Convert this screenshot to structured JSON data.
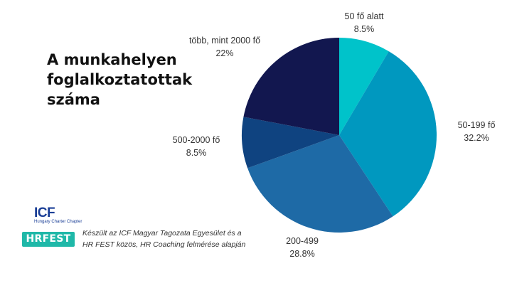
{
  "page": {
    "title": "A munkahelyen foglalkoztatottak száma",
    "credit": "Készült az ICF Magyar Tagozata Egyesület és a HR FEST közös, HR Coaching felmérése alapján",
    "logos": {
      "icf": "ICF",
      "icf_sub": "Hungary Charter Chapter",
      "hrfest": "HRFEST"
    }
  },
  "chart_data": {
    "type": "pie",
    "title": "A munkahelyen foglalkoztatottak száma",
    "start_angle_deg": 0,
    "direction": "clockwise",
    "slices": [
      {
        "label": "50 fő alatt",
        "value_text": "8.5%",
        "value": 8.5,
        "color": "#00c3ca"
      },
      {
        "label": "50-199 fő",
        "value_text": "32.2%",
        "value": 32.2,
        "color": "#0098bf"
      },
      {
        "label": "200-499",
        "value_text": "28.8%",
        "value": 28.8,
        "color": "#1e6aa6"
      },
      {
        "label": "500-2000 fő",
        "value_text": "8.5%",
        "value": 8.5,
        "color": "#0f4380"
      },
      {
        "label": "több, mint 2000 fő",
        "value_text": "22%",
        "value": 22,
        "color": "#12174f"
      }
    ]
  }
}
